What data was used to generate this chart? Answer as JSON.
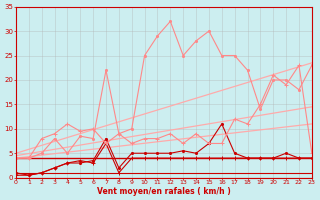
{
  "xlabel": "Vent moyen/en rafales ( km/h )",
  "xlim": [
    0,
    23
  ],
  "ylim": [
    0,
    35
  ],
  "yticks": [
    0,
    5,
    10,
    15,
    20,
    25,
    30,
    35
  ],
  "xticks": [
    0,
    1,
    2,
    3,
    4,
    5,
    6,
    7,
    8,
    9,
    10,
    11,
    12,
    13,
    14,
    15,
    16,
    17,
    18,
    19,
    20,
    21,
    22,
    23
  ],
  "bg_color": "#cceef0",
  "grid_color": "#b0b0b0",
  "series": [
    {
      "x": [
        0,
        23
      ],
      "y": [
        0,
        0
      ],
      "color": "#cc0000",
      "lw": 0.8,
      "marker": null,
      "ms": 0
    },
    {
      "x": [
        0,
        23
      ],
      "y": [
        1,
        1
      ],
      "color": "#cc0000",
      "lw": 0.8,
      "marker": null,
      "ms": 0
    },
    {
      "x": [
        0,
        23
      ],
      "y": [
        4,
        4
      ],
      "color": "#cc0000",
      "lw": 1.0,
      "marker": null,
      "ms": 0
    },
    {
      "x": [
        0,
        23
      ],
      "y": [
        4.0,
        11.0
      ],
      "color": "#ffaaaa",
      "lw": 0.9,
      "marker": null,
      "ms": 0
    },
    {
      "x": [
        0,
        23
      ],
      "y": [
        4.5,
        14.5
      ],
      "color": "#ffaaaa",
      "lw": 0.9,
      "marker": null,
      "ms": 0
    },
    {
      "x": [
        0,
        23
      ],
      "y": [
        5.0,
        23.5
      ],
      "color": "#ffaaaa",
      "lw": 0.9,
      "marker": null,
      "ms": 0
    },
    {
      "x": [
        0,
        1,
        2,
        3,
        4,
        5,
        6,
        7,
        8,
        9,
        10,
        11,
        12,
        13,
        14,
        15,
        16,
        17,
        18,
        19,
        20,
        21,
        22,
        23
      ],
      "y": [
        0.5,
        0.5,
        1,
        2,
        3,
        3.5,
        3,
        7,
        1,
        4,
        4,
        4,
        4,
        4,
        4,
        4,
        4,
        4,
        4,
        4,
        4,
        4,
        4,
        4
      ],
      "color": "#cc0000",
      "lw": 0.8,
      "marker": "+",
      "ms": 3.0
    },
    {
      "x": [
        0,
        1,
        2,
        3,
        4,
        5,
        6,
        7,
        8,
        9,
        10,
        11,
        12,
        13,
        14,
        15,
        16,
        17,
        18,
        19,
        20,
        21,
        22,
        23
      ],
      "y": [
        1,
        0.5,
        1,
        2,
        3,
        3,
        3.5,
        8,
        2,
        5,
        5,
        5,
        5,
        5.5,
        5,
        7,
        11,
        5,
        4,
        4,
        4,
        5,
        4,
        4
      ],
      "color": "#cc0000",
      "lw": 0.8,
      "marker": ".",
      "ms": 3.0
    },
    {
      "x": [
        0,
        1,
        2,
        3,
        4,
        5,
        6,
        7,
        8,
        9,
        10,
        11,
        12,
        13,
        14,
        15,
        16,
        17,
        18,
        19,
        20,
        21,
        22,
        23
      ],
      "y": [
        4,
        4,
        8,
        9,
        11,
        9.5,
        10,
        7,
        9,
        7,
        8,
        8,
        9,
        7,
        9,
        7,
        7,
        12,
        11,
        15,
        21,
        19,
        23,
        5
      ],
      "color": "#ff8888",
      "lw": 0.8,
      "marker": "+",
      "ms": 3.5
    },
    {
      "x": [
        0,
        1,
        2,
        3,
        4,
        5,
        6,
        7,
        8,
        9,
        10,
        11,
        12,
        13,
        14,
        15,
        16,
        17,
        18,
        19,
        20,
        21,
        22,
        23
      ],
      "y": [
        4,
        4,
        5,
        8,
        5,
        8.5,
        8,
        22,
        9,
        10,
        25,
        29,
        32,
        25,
        28,
        30,
        25,
        25,
        22,
        14,
        20,
        20,
        18,
        23
      ],
      "color": "#ff8888",
      "lw": 0.8,
      "marker": ".",
      "ms": 3.0
    }
  ]
}
